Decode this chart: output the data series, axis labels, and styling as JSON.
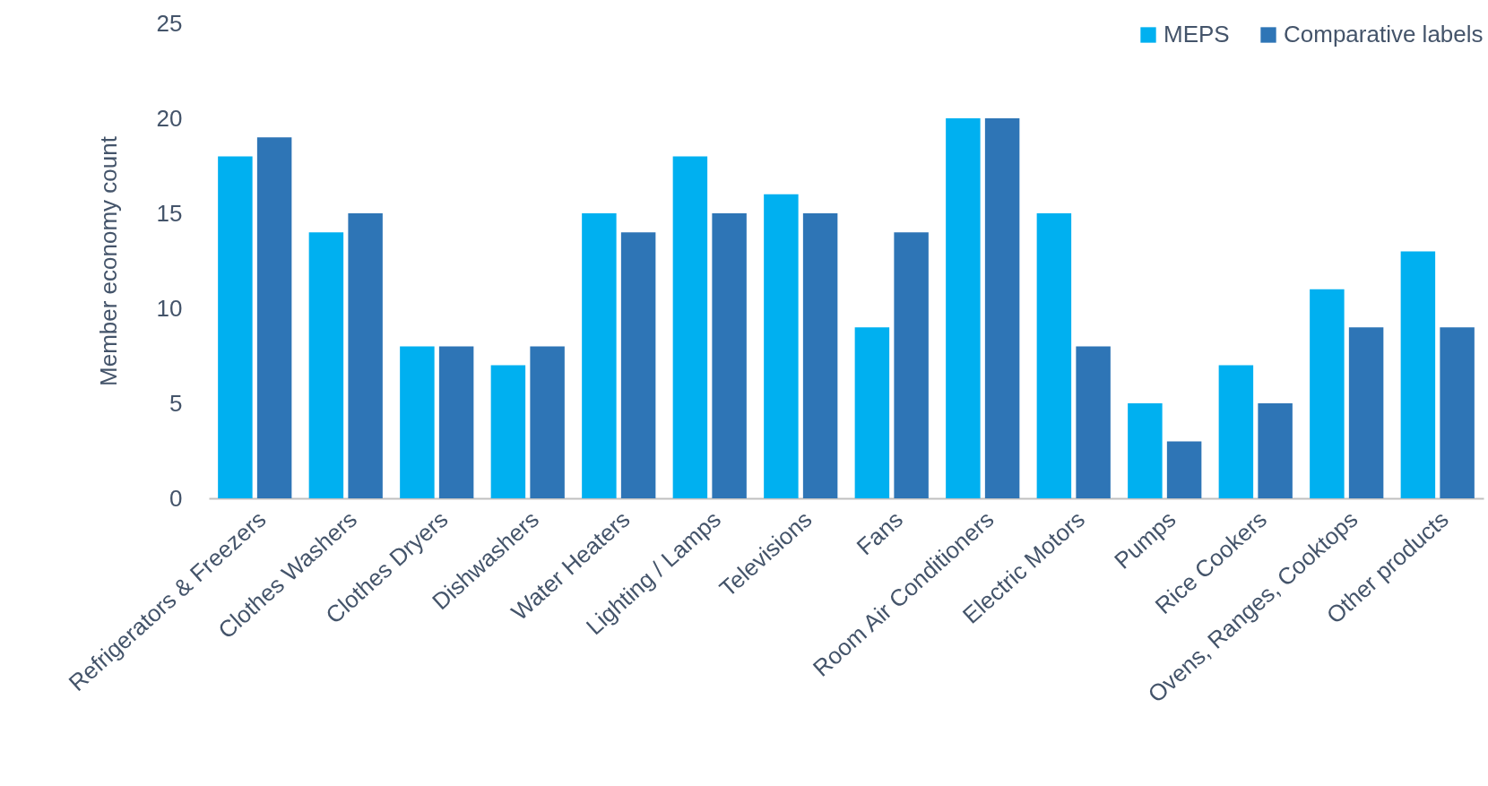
{
  "chart_data": {
    "type": "bar",
    "ylabel": "Member economy count",
    "categories": [
      "Refrigerators & Freezers",
      "Clothes Washers",
      "Clothes Dryers",
      "Dishwashers",
      "Water Heaters",
      "Lighting / Lamps",
      "Televisions",
      "Fans",
      "Room Air Conditioners",
      "Electric Motors",
      "Pumps",
      "Rice Cookers",
      "Ovens, Ranges, Cooktops",
      "Other products"
    ],
    "series": [
      {
        "name": "MEPS",
        "color": "#00b0f0",
        "values": [
          18,
          14,
          8,
          7,
          15,
          18,
          16,
          9,
          20,
          15,
          5,
          7,
          11,
          13
        ]
      },
      {
        "name": "Comparative labels",
        "color": "#2e75b6",
        "values": [
          19,
          15,
          8,
          8,
          14,
          15,
          15,
          14,
          20,
          8,
          3,
          5,
          9,
          9
        ]
      }
    ],
    "ylim": [
      0,
      25
    ],
    "yticks": [
      0,
      5,
      10,
      15,
      20,
      25
    ],
    "grid": false,
    "legend": "top right"
  }
}
